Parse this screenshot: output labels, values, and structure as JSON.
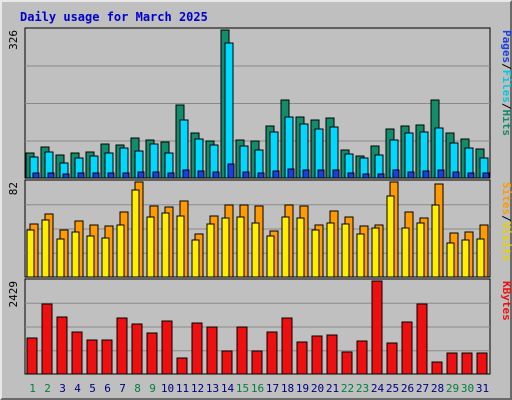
{
  "title": "Daily usage for March 2025",
  "colors": {
    "hits": "#128c6a",
    "files": "#00d8ff",
    "pages": "#1a3fe0",
    "visits": "#ff9a00",
    "sites": "#ffee00",
    "kbytes": "#ee1010",
    "weekend_label": "#008040",
    "weekday_label": "#000080",
    "title": "#0000cc"
  },
  "chart_data": [
    {
      "type": "bar",
      "panel": "hits-files-pages",
      "y_max_label": "326",
      "ylim": [
        0,
        326
      ],
      "categories": [
        "1",
        "2",
        "3",
        "4",
        "5",
        "6",
        "7",
        "8",
        "9",
        "10",
        "11",
        "12",
        "13",
        "14",
        "15",
        "16",
        "17",
        "18",
        "19",
        "20",
        "21",
        "22",
        "23",
        "24",
        "25",
        "26",
        "27",
        "28",
        "29",
        "30",
        "31"
      ],
      "weekend": [
        "1",
        "2",
        "8",
        "9",
        "15",
        "16",
        "22",
        "23",
        "29",
        "30"
      ],
      "right_labels": [
        {
          "text": "Pages",
          "color": "#1a3fe0"
        },
        {
          "text": "/",
          "color": "#000000"
        },
        {
          "text": "Files",
          "color": "#00c8e0"
        },
        {
          "text": "/",
          "color": "#000000"
        },
        {
          "text": "Hits",
          "color": "#128c6a"
        }
      ],
      "series": [
        {
          "name": "Hits",
          "values": [
            56,
            68,
            50,
            55,
            58,
            75,
            73,
            88,
            84,
            79,
            160,
            99,
            82,
            326,
            84,
            81,
            115,
            171,
            135,
            128,
            133,
            61,
            49,
            70,
            108,
            115,
            116,
            171,
            99,
            86,
            63
          ]
        },
        {
          "name": "Files",
          "values": [
            46,
            57,
            34,
            45,
            48,
            55,
            66,
            60,
            75,
            56,
            128,
            87,
            73,
            298,
            70,
            61,
            102,
            134,
            118,
            107,
            112,
            52,
            44,
            50,
            84,
            100,
            101,
            111,
            77,
            66,
            45
          ]
        },
        {
          "name": "Pages",
          "values": [
            10,
            12,
            9,
            10,
            10,
            12,
            11,
            13,
            13,
            12,
            18,
            15,
            14,
            30,
            14,
            12,
            16,
            20,
            18,
            17,
            18,
            10,
            8,
            9,
            17,
            14,
            15,
            18,
            13,
            12,
            10
          ]
        }
      ]
    },
    {
      "type": "bar",
      "panel": "visits-sites",
      "y_max_label": "82",
      "ylim": [
        0,
        82
      ],
      "categories": [
        "1",
        "2",
        "3",
        "4",
        "5",
        "6",
        "7",
        "8",
        "9",
        "10",
        "11",
        "12",
        "13",
        "14",
        "15",
        "16",
        "17",
        "18",
        "19",
        "20",
        "21",
        "22",
        "23",
        "24",
        "25",
        "26",
        "27",
        "28",
        "29",
        "30",
        "31"
      ],
      "right_labels": [
        {
          "text": "Sites",
          "color": "#ff9a00"
        },
        {
          "text": "/",
          "color": "#000000"
        },
        {
          "text": "Visits",
          "color": "#e8d000"
        }
      ],
      "series": [
        {
          "name": "Visits",
          "values": [
            46,
            54,
            41,
            48,
            45,
            44,
            56,
            82,
            61,
            60,
            66,
            37,
            53,
            62,
            62,
            61,
            40,
            62,
            61,
            45,
            57,
            52,
            44,
            45,
            82,
            56,
            51,
            80,
            38,
            39,
            45
          ]
        },
        {
          "name": "Sites",
          "values": [
            41,
            49,
            33,
            39,
            35,
            34,
            45,
            75,
            52,
            55,
            53,
            32,
            46,
            51,
            52,
            47,
            35,
            52,
            51,
            41,
            47,
            46,
            37,
            42,
            70,
            42,
            47,
            62,
            29,
            32,
            33
          ]
        }
      ]
    },
    {
      "type": "bar",
      "panel": "kbytes",
      "y_max_label": "2429",
      "ylim": [
        0,
        2429
      ],
      "categories": [
        "1",
        "2",
        "3",
        "4",
        "5",
        "6",
        "7",
        "8",
        "9",
        "10",
        "11",
        "12",
        "13",
        "14",
        "15",
        "16",
        "17",
        "18",
        "19",
        "20",
        "21",
        "22",
        "23",
        "24",
        "25",
        "26",
        "27",
        "28",
        "29",
        "30",
        "31"
      ],
      "right_labels": [
        {
          "text": "KBytes",
          "color": "#ee1010"
        }
      ],
      "series": [
        {
          "name": "KBytes",
          "values": [
            930,
            1820,
            1500,
            1110,
            900,
            880,
            1460,
            1300,
            1080,
            1380,
            430,
            1340,
            1240,
            600,
            1240,
            600,
            1100,
            1450,
            840,
            980,
            1020,
            580,
            870,
            2429,
            820,
            1360,
            1820,
            320,
            560,
            560,
            560
          ]
        }
      ]
    }
  ]
}
